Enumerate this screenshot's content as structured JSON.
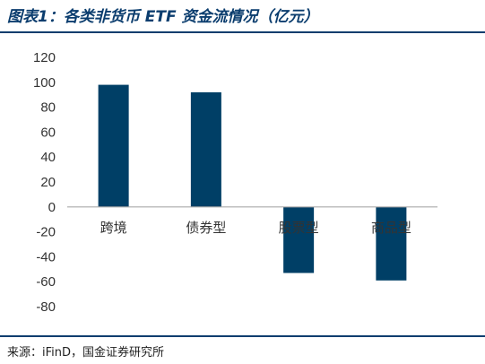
{
  "figure_title": "图表1：各类非货币 ETF 资金流情况（亿元）",
  "source_note": "来源：iFinD，国金证券研究所",
  "colors": {
    "bar": "#003f66",
    "axis": "#aaaaaa",
    "title": "#0b3d6e"
  },
  "chart_data": {
    "type": "bar",
    "categories": [
      "跨境",
      "债券型",
      "股票型",
      "商品型"
    ],
    "values": [
      98,
      92,
      -53,
      -59
    ],
    "ylim": [
      -80,
      120
    ],
    "yticks": [
      120,
      100,
      80,
      60,
      40,
      20,
      0,
      -20,
      -40,
      -60,
      -80
    ],
    "grid": false,
    "title": "",
    "xlabel": "",
    "ylabel": ""
  }
}
